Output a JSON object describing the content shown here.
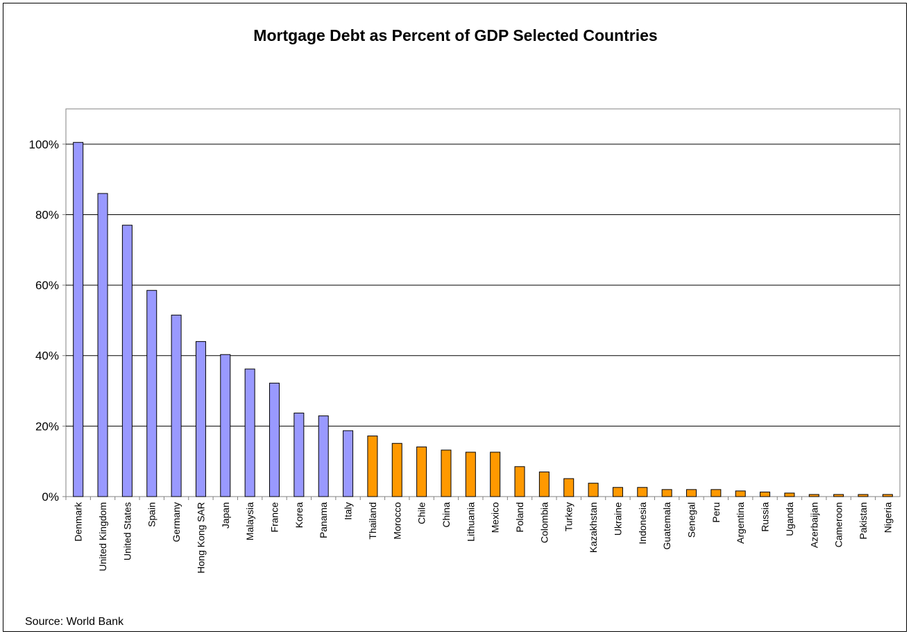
{
  "chart_data": {
    "type": "bar",
    "title": "Mortgage Debt as Percent of GDP Selected Countries",
    "xlabel": "",
    "ylabel": "",
    "ylim": [
      0,
      110
    ],
    "yticks": [
      0,
      20,
      40,
      60,
      80,
      100
    ],
    "ytick_labels": [
      "0%",
      "20%",
      "40%",
      "60%",
      "80%",
      "100%"
    ],
    "grid": true,
    "legend": "none",
    "categories": [
      "Denmark",
      "United Kingdom",
      "United States",
      "Spain",
      "Germany",
      "Hong Kong SAR",
      "Japan",
      "Malaysia",
      "France",
      "Korea",
      "Panama",
      "Italy",
      "Thailand",
      "Morocco",
      "Chile",
      "China",
      "Lithuania",
      "Mexico",
      "Poland",
      "Colombia",
      "Turkey",
      "Kazakhstan",
      "Ukraine",
      "Indonesia",
      "Guatemala",
      "Senegal",
      "Peru",
      "Argentina",
      "Russia",
      "Uganda",
      "Azerbaijan",
      "Cameroon",
      "Pakistan",
      "Nigeria"
    ],
    "values": [
      100.5,
      86,
      77,
      58.5,
      51.5,
      44,
      40.3,
      36.2,
      32.2,
      23.7,
      22.9,
      18.7,
      17.2,
      15.1,
      14.1,
      13.2,
      12.6,
      12.6,
      8.5,
      7,
      5.1,
      3.8,
      2.6,
      2.6,
      2,
      2,
      2,
      1.6,
      1.3,
      1,
      0.6,
      0.6,
      0.6,
      0.6
    ],
    "bar_groups": [
      0,
      0,
      0,
      0,
      0,
      0,
      0,
      0,
      0,
      0,
      0,
      0,
      1,
      1,
      1,
      1,
      1,
      1,
      1,
      1,
      1,
      1,
      1,
      1,
      1,
      1,
      1,
      1,
      1,
      1,
      1,
      1,
      1,
      1
    ],
    "colors": {
      "group_0": "#9999ff",
      "group_1": "#ff9900",
      "bar_outline": "#000000",
      "gridline": "#000000",
      "axis": "#808080"
    }
  },
  "source_note": "Source: World Bank"
}
